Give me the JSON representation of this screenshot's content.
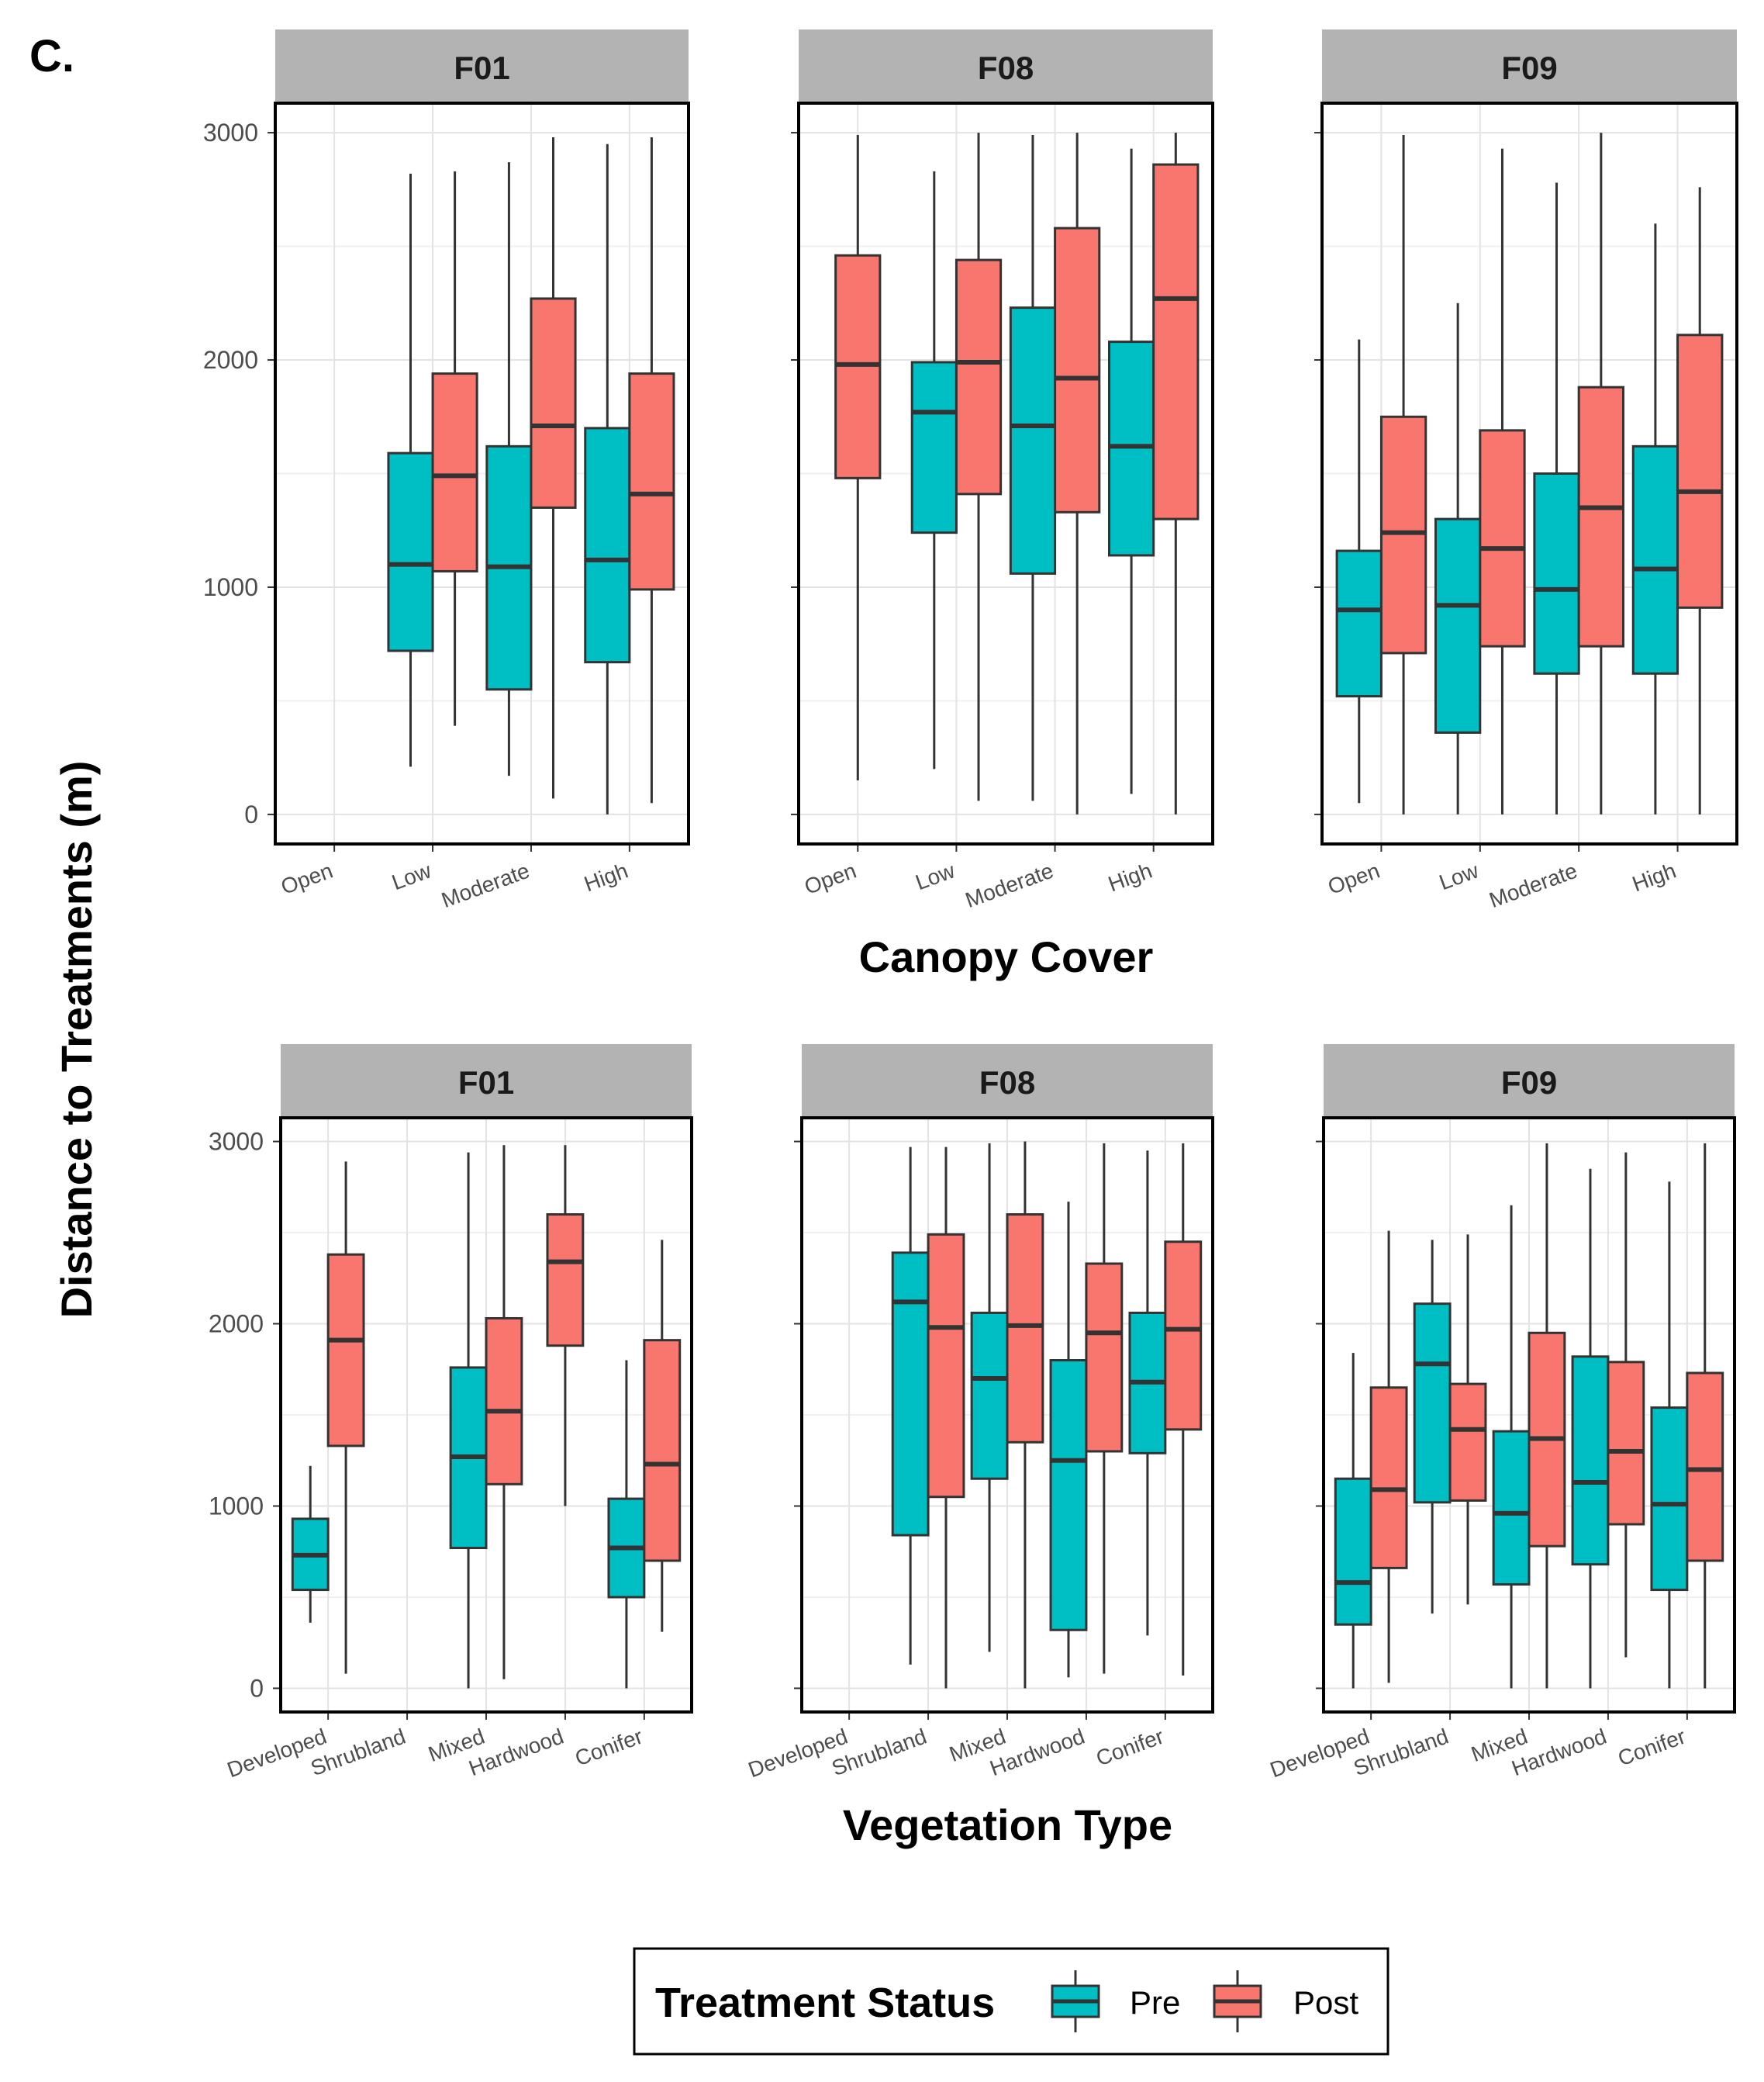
{
  "panel_label": "C.",
  "y_axis_title": "Distance to Treatments (m)",
  "legend": {
    "title": "Treatment Status",
    "entries": [
      {
        "key": "pre",
        "label": "Pre",
        "color": "#00BFC4"
      },
      {
        "key": "post",
        "label": "Post",
        "color": "#F8766D"
      }
    ]
  },
  "chart_data": [
    {
      "type": "boxplot",
      "title": "Canopy Cover",
      "xlabel": "Canopy Cover",
      "ylabel": "Distance to Treatments (m)",
      "ylim": [
        -130,
        3130
      ],
      "yticks": [
        0,
        1000,
        2000,
        3000
      ],
      "ytick_labels": [
        "0",
        "1000",
        "2000",
        "3000"
      ],
      "categories": [
        "Open",
        "Low",
        "Moderate",
        "High"
      ],
      "facets": [
        {
          "name": "F01",
          "boxes": [
            {
              "category": "Low",
              "status": "pre",
              "min": 210,
              "q1": 720,
              "median": 1100,
              "q3": 1590,
              "max": 2820
            },
            {
              "category": "Low",
              "status": "post",
              "min": 390,
              "q1": 1070,
              "median": 1490,
              "q3": 1940,
              "max": 2830
            },
            {
              "category": "Moderate",
              "status": "pre",
              "min": 170,
              "q1": 550,
              "median": 1090,
              "q3": 1620,
              "max": 2870
            },
            {
              "category": "Moderate",
              "status": "post",
              "min": 70,
              "q1": 1350,
              "median": 1710,
              "q3": 2270,
              "max": 2980
            },
            {
              "category": "High",
              "status": "pre",
              "min": 0,
              "q1": 670,
              "median": 1120,
              "q3": 1700,
              "max": 2950
            },
            {
              "category": "High",
              "status": "post",
              "min": 50,
              "q1": 990,
              "median": 1410,
              "q3": 1940,
              "max": 2980
            }
          ]
        },
        {
          "name": "F08",
          "boxes": [
            {
              "category": "Open",
              "status": "post",
              "min": 150,
              "q1": 1480,
              "median": 1980,
              "q3": 2460,
              "max": 2990
            },
            {
              "category": "Low",
              "status": "pre",
              "min": 200,
              "q1": 1240,
              "median": 1770,
              "q3": 1990,
              "max": 2830
            },
            {
              "category": "Low",
              "status": "post",
              "min": 60,
              "q1": 1410,
              "median": 1990,
              "q3": 2440,
              "max": 3000
            },
            {
              "category": "Moderate",
              "status": "pre",
              "min": 60,
              "q1": 1060,
              "median": 1710,
              "q3": 2230,
              "max": 2990
            },
            {
              "category": "Moderate",
              "status": "post",
              "min": 0,
              "q1": 1330,
              "median": 1920,
              "q3": 2580,
              "max": 3000
            },
            {
              "category": "High",
              "status": "pre",
              "min": 90,
              "q1": 1140,
              "median": 1620,
              "q3": 2080,
              "max": 2930
            },
            {
              "category": "High",
              "status": "post",
              "min": 0,
              "q1": 1300,
              "median": 2270,
              "q3": 2860,
              "max": 3000
            }
          ]
        },
        {
          "name": "F09",
          "boxes": [
            {
              "category": "Open",
              "status": "pre",
              "min": 50,
              "q1": 520,
              "median": 900,
              "q3": 1160,
              "max": 2090
            },
            {
              "category": "Open",
              "status": "post",
              "min": 0,
              "q1": 710,
              "median": 1240,
              "q3": 1750,
              "max": 2990
            },
            {
              "category": "Low",
              "status": "pre",
              "min": 0,
              "q1": 360,
              "median": 920,
              "q3": 1300,
              "max": 2250
            },
            {
              "category": "Low",
              "status": "post",
              "min": 0,
              "q1": 740,
              "median": 1170,
              "q3": 1690,
              "max": 2930
            },
            {
              "category": "Moderate",
              "status": "pre",
              "min": 0,
              "q1": 620,
              "median": 990,
              "q3": 1500,
              "max": 2780
            },
            {
              "category": "Moderate",
              "status": "post",
              "min": 0,
              "q1": 740,
              "median": 1350,
              "q3": 1880,
              "max": 3000
            },
            {
              "category": "High",
              "status": "pre",
              "min": 0,
              "q1": 620,
              "median": 1080,
              "q3": 1620,
              "max": 2600
            },
            {
              "category": "High",
              "status": "post",
              "min": 0,
              "q1": 910,
              "median": 1420,
              "q3": 2110,
              "max": 2760
            }
          ]
        }
      ]
    },
    {
      "type": "boxplot",
      "title": "Vegetation Type",
      "xlabel": "Vegetation Type",
      "ylabel": "Distance to Treatments (m)",
      "ylim": [
        -130,
        3130
      ],
      "yticks": [
        0,
        1000,
        2000,
        3000
      ],
      "ytick_labels": [
        "0",
        "1000",
        "2000",
        "3000"
      ],
      "categories": [
        "Developed",
        "Shrubland",
        "Mixed",
        "Hardwood",
        "Conifer"
      ],
      "facets": [
        {
          "name": "F01",
          "boxes": [
            {
              "category": "Developed",
              "status": "pre",
              "min": 360,
              "q1": 540,
              "median": 730,
              "q3": 930,
              "max": 1220
            },
            {
              "category": "Developed",
              "status": "post",
              "min": 80,
              "q1": 1330,
              "median": 1910,
              "q3": 2380,
              "max": 2890
            },
            {
              "category": "Mixed",
              "status": "pre",
              "min": 0,
              "q1": 770,
              "median": 1270,
              "q3": 1760,
              "max": 2940
            },
            {
              "category": "Mixed",
              "status": "post",
              "min": 50,
              "q1": 1120,
              "median": 1520,
              "q3": 2030,
              "max": 2980
            },
            {
              "category": "Hardwood",
              "status": "post",
              "min": 1000,
              "q1": 1880,
              "median": 2340,
              "q3": 2600,
              "max": 2980
            },
            {
              "category": "Conifer",
              "status": "pre",
              "min": 0,
              "q1": 500,
              "median": 770,
              "q3": 1040,
              "max": 1800
            },
            {
              "category": "Conifer",
              "status": "post",
              "min": 310,
              "q1": 700,
              "median": 1230,
              "q3": 1910,
              "max": 2460
            }
          ]
        },
        {
          "name": "F08",
          "boxes": [
            {
              "category": "Shrubland",
              "status": "pre",
              "min": 130,
              "q1": 840,
              "median": 2120,
              "q3": 2390,
              "max": 2970
            },
            {
              "category": "Shrubland",
              "status": "post",
              "min": 0,
              "q1": 1050,
              "median": 1980,
              "q3": 2490,
              "max": 2970
            },
            {
              "category": "Mixed",
              "status": "pre",
              "min": 200,
              "q1": 1150,
              "median": 1700,
              "q3": 2060,
              "max": 2990
            },
            {
              "category": "Mixed",
              "status": "post",
              "min": 0,
              "q1": 1350,
              "median": 1990,
              "q3": 2600,
              "max": 3000
            },
            {
              "category": "Hardwood",
              "status": "pre",
              "min": 60,
              "q1": 320,
              "median": 1250,
              "q3": 1800,
              "max": 2670
            },
            {
              "category": "Hardwood",
              "status": "post",
              "min": 80,
              "q1": 1300,
              "median": 1950,
              "q3": 2330,
              "max": 2990
            },
            {
              "category": "Conifer",
              "status": "pre",
              "min": 290,
              "q1": 1290,
              "median": 1680,
              "q3": 2060,
              "max": 2950
            },
            {
              "category": "Conifer",
              "status": "post",
              "min": 70,
              "q1": 1420,
              "median": 1970,
              "q3": 2450,
              "max": 2990
            }
          ]
        },
        {
          "name": "F09",
          "boxes": [
            {
              "category": "Developed",
              "status": "pre",
              "min": 0,
              "q1": 350,
              "median": 580,
              "q3": 1150,
              "max": 1840
            },
            {
              "category": "Developed",
              "status": "post",
              "min": 30,
              "q1": 660,
              "median": 1090,
              "q3": 1650,
              "max": 2510
            },
            {
              "category": "Shrubland",
              "status": "pre",
              "min": 410,
              "q1": 1020,
              "median": 1780,
              "q3": 2110,
              "max": 2460
            },
            {
              "category": "Shrubland",
              "status": "post",
              "min": 460,
              "q1": 1030,
              "median": 1420,
              "q3": 1670,
              "max": 2490
            },
            {
              "category": "Mixed",
              "status": "pre",
              "min": 0,
              "q1": 570,
              "median": 960,
              "q3": 1410,
              "max": 2650
            },
            {
              "category": "Mixed",
              "status": "post",
              "min": 0,
              "q1": 780,
              "median": 1370,
              "q3": 1950,
              "max": 2990
            },
            {
              "category": "Hardwood",
              "status": "pre",
              "min": 0,
              "q1": 680,
              "median": 1130,
              "q3": 1820,
              "max": 2850
            },
            {
              "category": "Hardwood",
              "status": "post",
              "min": 170,
              "q1": 900,
              "median": 1300,
              "q3": 1790,
              "max": 2940
            },
            {
              "category": "Conifer",
              "status": "pre",
              "min": 0,
              "q1": 540,
              "median": 1010,
              "q3": 1540,
              "max": 2780
            },
            {
              "category": "Conifer",
              "status": "post",
              "min": 0,
              "q1": 700,
              "median": 1200,
              "q3": 1730,
              "max": 2990
            }
          ]
        }
      ]
    }
  ]
}
